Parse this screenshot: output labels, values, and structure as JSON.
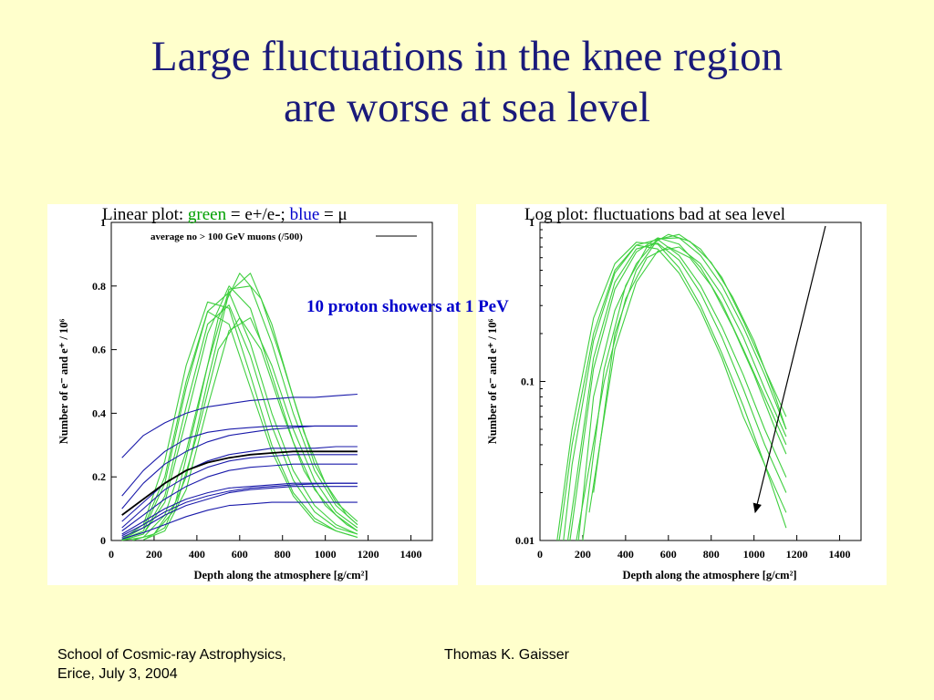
{
  "slide": {
    "title_line1": "Large fluctuations in the knee region",
    "title_line2": "are worse at sea level",
    "annotation": "10 proton showers at 1 PeV",
    "footer_left_line1": "School of Cosmic-ray Astrophysics,",
    "footer_left_line2": "Erice, July 3, 2004",
    "footer_center": "Thomas K. Gaisser"
  },
  "colors": {
    "background": "#ffffcc",
    "title": "#1a1a7a",
    "green": "#3fcf3f",
    "blue": "#1a1aaa",
    "annotation": "#0000cc"
  },
  "captions": {
    "left_prefix": "Linear plot: ",
    "left_green": "green",
    "left_mid": " = e+/e-; ",
    "left_blue": "blue",
    "left_end": " = μ",
    "right": "Log plot: fluctuations bad at sea level"
  },
  "chart_data": [
    {
      "type": "line",
      "scale": "linear",
      "title": "average no > 100 GeV muons (/500)",
      "xlabel": "Depth along the atmosphere   [g/cm²]",
      "ylabel": "Number of e⁻ and e⁺ / 10⁶",
      "xlim": [
        0,
        1500
      ],
      "ylim": [
        0,
        1
      ],
      "xticks": [
        "0",
        "200",
        "400",
        "600",
        "800",
        "1000",
        "1200",
        "1400"
      ],
      "yticks": [
        "0",
        "0.2",
        "0.4",
        "0.6",
        "0.8",
        "1"
      ],
      "series": [
        {
          "kind": "electron",
          "color": "#3fcf3f",
          "x": [
            50,
            150,
            250,
            350,
            450,
            550,
            650,
            750,
            850,
            950,
            1050,
            1150
          ],
          "y": [
            0.005,
            0.05,
            0.25,
            0.55,
            0.75,
            0.73,
            0.52,
            0.3,
            0.15,
            0.07,
            0.03,
            0.01
          ]
        },
        {
          "kind": "electron",
          "color": "#3fcf3f",
          "x": [
            50,
            150,
            250,
            350,
            450,
            550,
            650,
            750,
            850,
            950,
            1050,
            1150
          ],
          "y": [
            0.002,
            0.03,
            0.18,
            0.48,
            0.72,
            0.78,
            0.62,
            0.4,
            0.22,
            0.11,
            0.05,
            0.02
          ]
        },
        {
          "kind": "electron",
          "color": "#3fcf3f",
          "x": [
            50,
            150,
            250,
            350,
            450,
            550,
            650,
            750,
            850,
            950,
            1050,
            1150
          ],
          "y": [
            0.001,
            0.02,
            0.12,
            0.38,
            0.65,
            0.8,
            0.73,
            0.52,
            0.31,
            0.16,
            0.08,
            0.03
          ]
        },
        {
          "kind": "electron",
          "color": "#3fcf3f",
          "x": [
            50,
            150,
            250,
            350,
            450,
            550,
            650,
            750,
            850,
            950,
            1050,
            1150
          ],
          "y": [
            0.001,
            0.01,
            0.08,
            0.28,
            0.55,
            0.79,
            0.8,
            0.62,
            0.4,
            0.22,
            0.11,
            0.05
          ]
        },
        {
          "kind": "electron",
          "color": "#3fcf3f",
          "x": [
            100,
            200,
            300,
            400,
            500,
            600,
            700,
            800,
            900,
            1000,
            1100,
            1150
          ],
          "y": [
            0.001,
            0.02,
            0.12,
            0.4,
            0.7,
            0.84,
            0.76,
            0.56,
            0.34,
            0.18,
            0.08,
            0.05
          ]
        },
        {
          "kind": "electron",
          "color": "#3fcf3f",
          "x": [
            150,
            250,
            350,
            450,
            550,
            650,
            750,
            850,
            950,
            1050,
            1150
          ],
          "y": [
            0.002,
            0.04,
            0.2,
            0.5,
            0.78,
            0.84,
            0.68,
            0.45,
            0.24,
            0.12,
            0.06
          ]
        },
        {
          "kind": "electron",
          "color": "#3fcf3f",
          "x": [
            50,
            150,
            250,
            350,
            450,
            550,
            650,
            750,
            850,
            950,
            1050,
            1150
          ],
          "y": [
            0.003,
            0.04,
            0.2,
            0.5,
            0.72,
            0.68,
            0.48,
            0.28,
            0.14,
            0.06,
            0.03,
            0.01
          ]
        },
        {
          "kind": "electron",
          "color": "#3fcf3f",
          "x": [
            50,
            150,
            250,
            350,
            450,
            550,
            650,
            750,
            850,
            950,
            1050,
            1150
          ],
          "y": [
            0.001,
            0.02,
            0.14,
            0.42,
            0.68,
            0.74,
            0.58,
            0.36,
            0.19,
            0.09,
            0.04,
            0.02
          ]
        },
        {
          "kind": "electron",
          "color": "#3fcf3f",
          "x": [
            100,
            200,
            300,
            400,
            500,
            600,
            700,
            800,
            900,
            1000,
            1100,
            1150
          ],
          "y": [
            0.001,
            0.02,
            0.1,
            0.33,
            0.6,
            0.7,
            0.6,
            0.4,
            0.22,
            0.11,
            0.05,
            0.03
          ]
        },
        {
          "kind": "electron",
          "color": "#3fcf3f",
          "x": [
            150,
            250,
            350,
            450,
            550,
            650,
            750,
            850,
            950,
            1050,
            1150
          ],
          "y": [
            0.002,
            0.03,
            0.16,
            0.42,
            0.66,
            0.7,
            0.55,
            0.35,
            0.19,
            0.09,
            0.04
          ]
        },
        {
          "kind": "muon",
          "color": "#1a1aaa",
          "x": [
            50,
            150,
            250,
            350,
            450,
            550,
            650,
            750,
            850,
            950,
            1050,
            1150
          ],
          "y": [
            0.26,
            0.33,
            0.37,
            0.4,
            0.42,
            0.43,
            0.44,
            0.445,
            0.45,
            0.45,
            0.455,
            0.46
          ]
        },
        {
          "kind": "muon",
          "color": "#1a1aaa",
          "x": [
            50,
            150,
            250,
            350,
            450,
            550,
            650,
            750,
            850,
            950,
            1050,
            1150
          ],
          "y": [
            0.14,
            0.22,
            0.28,
            0.32,
            0.34,
            0.35,
            0.355,
            0.36,
            0.36,
            0.36,
            0.36,
            0.36
          ]
        },
        {
          "kind": "muon",
          "color": "#1a1aaa",
          "x": [
            50,
            150,
            250,
            350,
            450,
            550,
            650,
            750,
            850,
            950,
            1050,
            1150
          ],
          "y": [
            0.1,
            0.18,
            0.24,
            0.28,
            0.31,
            0.33,
            0.34,
            0.35,
            0.355,
            0.36,
            0.36,
            0.36
          ]
        },
        {
          "kind": "muon",
          "color": "#1a1aaa",
          "x": [
            50,
            150,
            250,
            350,
            450,
            550,
            650,
            750,
            850,
            950,
            1050,
            1150
          ],
          "y": [
            0.06,
            0.12,
            0.18,
            0.22,
            0.25,
            0.27,
            0.28,
            0.29,
            0.29,
            0.29,
            0.295,
            0.295
          ]
        },
        {
          "kind": "muon",
          "color": "#1a1aaa",
          "x": [
            50,
            150,
            250,
            350,
            450,
            550,
            650,
            750,
            850,
            950,
            1050,
            1150
          ],
          "y": [
            0.03,
            0.08,
            0.13,
            0.17,
            0.2,
            0.22,
            0.23,
            0.235,
            0.24,
            0.24,
            0.24,
            0.24
          ]
        },
        {
          "kind": "muon",
          "color": "#1a1aaa",
          "x": [
            50,
            150,
            250,
            350,
            450,
            550,
            650,
            750,
            850,
            950,
            1050,
            1150
          ],
          "y": [
            0.02,
            0.06,
            0.1,
            0.13,
            0.15,
            0.165,
            0.17,
            0.175,
            0.18,
            0.18,
            0.18,
            0.18
          ]
        },
        {
          "kind": "muon",
          "color": "#1a1aaa",
          "x": [
            50,
            150,
            250,
            350,
            450,
            550,
            650,
            750,
            850,
            950,
            1050,
            1150
          ],
          "y": [
            0.015,
            0.05,
            0.09,
            0.12,
            0.14,
            0.155,
            0.165,
            0.17,
            0.175,
            0.178,
            0.18,
            0.18
          ]
        },
        {
          "kind": "muon",
          "color": "#1a1aaa",
          "x": [
            50,
            150,
            250,
            350,
            450,
            550,
            650,
            750,
            850,
            950,
            1050,
            1150
          ],
          "y": [
            0.01,
            0.04,
            0.08,
            0.11,
            0.13,
            0.15,
            0.16,
            0.165,
            0.17,
            0.17,
            0.17,
            0.17
          ]
        },
        {
          "kind": "muon",
          "color": "#1a1aaa",
          "x": [
            50,
            150,
            250,
            350,
            450,
            550,
            650,
            750,
            850,
            950,
            1050,
            1150
          ],
          "y": [
            0.005,
            0.025,
            0.05,
            0.075,
            0.095,
            0.11,
            0.115,
            0.12,
            0.12,
            0.12,
            0.12,
            0.12
          ]
        },
        {
          "kind": "muon",
          "color": "#1a1aaa",
          "x": [
            50,
            150,
            250,
            350,
            450,
            550,
            650,
            750,
            850,
            950,
            1050,
            1150
          ],
          "y": [
            0.04,
            0.1,
            0.16,
            0.2,
            0.23,
            0.25,
            0.26,
            0.265,
            0.27,
            0.27,
            0.27,
            0.27
          ]
        },
        {
          "kind": "average",
          "name": "average no > 100 GeV muons (/500)",
          "color": "#000000",
          "x": [
            50,
            150,
            250,
            350,
            450,
            550,
            650,
            750,
            850,
            950,
            1050,
            1150
          ],
          "y": [
            0.08,
            0.13,
            0.18,
            0.22,
            0.245,
            0.26,
            0.27,
            0.275,
            0.28,
            0.28,
            0.28,
            0.28
          ]
        }
      ]
    },
    {
      "type": "line",
      "scale": "log",
      "xlabel": "Depth along the atmosphere   [g/cm²]",
      "ylabel": "Number of e⁻ and e⁺ / 10⁶",
      "xlim": [
        0,
        1500
      ],
      "ylim": [
        0.01,
        1
      ],
      "xticks": [
        "0",
        "200",
        "400",
        "600",
        "800",
        "1000",
        "1200",
        "1400"
      ],
      "yticks": [
        "0.01",
        "0.1",
        "1"
      ],
      "series": [
        {
          "kind": "electron",
          "color": "#3fcf3f",
          "x": [
            80,
            150,
            250,
            350,
            450,
            550,
            650,
            750,
            850,
            950,
            1050,
            1150
          ],
          "y": [
            0.01,
            0.05,
            0.25,
            0.55,
            0.75,
            0.73,
            0.52,
            0.3,
            0.15,
            0.07,
            0.03,
            0.015
          ]
        },
        {
          "kind": "electron",
          "color": "#3fcf3f",
          "x": [
            110,
            150,
            250,
            350,
            450,
            550,
            650,
            750,
            850,
            950,
            1050,
            1150
          ],
          "y": [
            0.01,
            0.03,
            0.18,
            0.48,
            0.72,
            0.78,
            0.62,
            0.4,
            0.22,
            0.11,
            0.05,
            0.025
          ]
        },
        {
          "kind": "electron",
          "color": "#3fcf3f",
          "x": [
            140,
            250,
            350,
            450,
            550,
            650,
            750,
            850,
            950,
            1050,
            1150
          ],
          "y": [
            0.01,
            0.12,
            0.38,
            0.65,
            0.8,
            0.73,
            0.52,
            0.31,
            0.16,
            0.08,
            0.04
          ]
        },
        {
          "kind": "electron",
          "color": "#3fcf3f",
          "x": [
            180,
            250,
            350,
            450,
            550,
            650,
            750,
            850,
            950,
            1050,
            1150
          ],
          "y": [
            0.01,
            0.08,
            0.28,
            0.55,
            0.79,
            0.8,
            0.62,
            0.4,
            0.22,
            0.11,
            0.05
          ]
        },
        {
          "kind": "electron",
          "color": "#3fcf3f",
          "x": [
            200,
            300,
            400,
            500,
            600,
            700,
            800,
            900,
            1000,
            1100,
            1150
          ],
          "y": [
            0.01,
            0.12,
            0.4,
            0.7,
            0.84,
            0.76,
            0.56,
            0.34,
            0.18,
            0.08,
            0.05
          ]
        },
        {
          "kind": "electron",
          "color": "#3fcf3f",
          "x": [
            250,
            350,
            450,
            550,
            650,
            750,
            850,
            950,
            1050,
            1150
          ],
          "y": [
            0.02,
            0.2,
            0.5,
            0.78,
            0.84,
            0.68,
            0.45,
            0.24,
            0.12,
            0.06
          ]
        },
        {
          "kind": "electron",
          "color": "#3fcf3f",
          "x": [
            90,
            150,
            250,
            350,
            450,
            550,
            650,
            750,
            850,
            950,
            1050,
            1150
          ],
          "y": [
            0.01,
            0.04,
            0.2,
            0.5,
            0.72,
            0.68,
            0.48,
            0.28,
            0.14,
            0.06,
            0.03,
            0.012
          ]
        },
        {
          "kind": "electron",
          "color": "#3fcf3f",
          "x": [
            130,
            250,
            350,
            450,
            550,
            650,
            750,
            850,
            950,
            1050,
            1150
          ],
          "y": [
            0.01,
            0.14,
            0.42,
            0.68,
            0.74,
            0.58,
            0.36,
            0.19,
            0.09,
            0.04,
            0.02
          ]
        },
        {
          "kind": "electron",
          "color": "#3fcf3f",
          "x": [
            170,
            300,
            400,
            500,
            600,
            700,
            800,
            900,
            1000,
            1100,
            1150
          ],
          "y": [
            0.01,
            0.1,
            0.33,
            0.6,
            0.7,
            0.6,
            0.4,
            0.22,
            0.11,
            0.05,
            0.035
          ]
        },
        {
          "kind": "electron",
          "color": "#3fcf3f",
          "x": [
            230,
            350,
            450,
            550,
            650,
            750,
            850,
            950,
            1050,
            1150
          ],
          "y": [
            0.015,
            0.16,
            0.42,
            0.66,
            0.7,
            0.55,
            0.35,
            0.19,
            0.09,
            0.045
          ]
        }
      ]
    }
  ]
}
